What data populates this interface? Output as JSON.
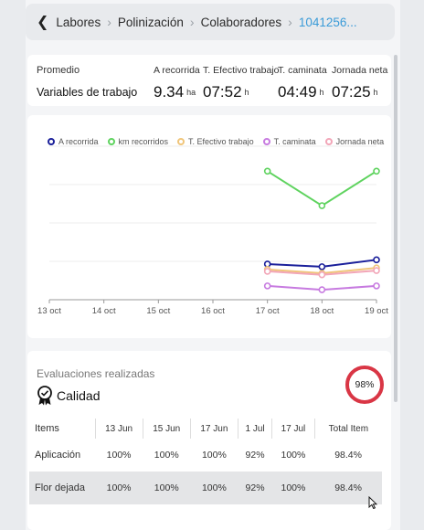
{
  "breadcrumb": {
    "items": [
      "Labores",
      "Polinización",
      "Colaboradores"
    ],
    "current": "1041256..."
  },
  "variables": {
    "promedio_label": "Promedio",
    "title": "Variables de trabajo",
    "metrics": [
      {
        "label": "A recorrida",
        "value": "9.34",
        "unit": "ha"
      },
      {
        "label": "T. Efectivo trabajo",
        "value": "07:52",
        "unit": "h"
      },
      {
        "label": "T. caminata",
        "value": "04:49",
        "unit": "h"
      },
      {
        "label": "Jornada neta",
        "value": "07:25",
        "unit": "h"
      }
    ]
  },
  "chart_data": {
    "type": "line",
    "x": [
      "13 oct",
      "14 oct",
      "15 oct",
      "16 oct",
      "17 oct",
      "18 oct",
      "19 oct"
    ],
    "series": [
      {
        "name": "A recorrida",
        "color": "#1a1f9a",
        "values": [
          null,
          null,
          null,
          null,
          9.3,
          8.6,
          10.4
        ]
      },
      {
        "name": "km recorridos",
        "color": "#5fd35f",
        "values": [
          null,
          null,
          null,
          null,
          33.5,
          24.5,
          33.5
        ]
      },
      {
        "name": "T. Efectivo trabajo",
        "color": "#f0c57a",
        "values": [
          null,
          null,
          null,
          null,
          7.9,
          6.9,
          8.3
        ]
      },
      {
        "name": "T. caminata",
        "color": "#c77be0",
        "values": [
          null,
          null,
          null,
          null,
          3.6,
          2.6,
          3.6
        ]
      },
      {
        "name": "Jornada neta",
        "color": "#f2a6b8",
        "values": [
          null,
          null,
          null,
          null,
          7.4,
          6.5,
          7.6
        ]
      }
    ],
    "ylim": [
      0,
      40
    ],
    "grid": true,
    "legend_position": "top"
  },
  "evaluations": {
    "title": "Evaluaciones realizadas",
    "category": "Calidad",
    "percent": "98%",
    "columns": [
      "Items",
      "13 Jun",
      "15 Jun",
      "17 Jun",
      "1 Jul",
      "17 Jul",
      "Total Item"
    ],
    "rows": [
      {
        "name": "Aplicación",
        "values": [
          "100%",
          "100%",
          "100%",
          "92%",
          "100%",
          "98.4%"
        ]
      },
      {
        "name": "Flor dejada",
        "values": [
          "100%",
          "100%",
          "100%",
          "92%",
          "100%",
          "98.4%"
        ]
      }
    ]
  }
}
